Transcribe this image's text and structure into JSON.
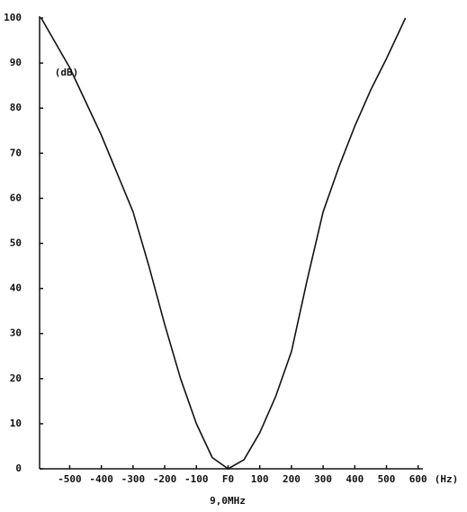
{
  "chart_data": {
    "type": "line",
    "x_label": "(Hz)",
    "y_label": "(dB)",
    "subtitle": "9,0MHz",
    "x": [
      -590,
      -500,
      -400,
      -300,
      -250,
      -200,
      -150,
      -100,
      -50,
      0,
      50,
      100,
      150,
      200,
      250,
      300,
      350,
      400,
      450,
      500,
      560
    ],
    "series": [
      {
        "color": "#111111",
        "values": [
          100,
          89,
          74,
          57,
          45,
          32,
          20,
          10,
          2.5,
          0,
          2,
          8,
          16,
          26,
          42,
          57,
          67,
          76,
          84,
          91,
          100
        ]
      }
    ],
    "xlim": [
      -595,
      615
    ],
    "ylim": [
      0,
      100
    ],
    "xticks": [
      -500,
      -400,
      -300,
      -200,
      -100,
      {
        "value": 0,
        "label": "F0"
      },
      100,
      200,
      300,
      400,
      500,
      600
    ],
    "yticks": [
      0,
      10,
      20,
      30,
      40,
      50,
      60,
      70,
      80,
      90,
      100
    ],
    "grid": false
  }
}
